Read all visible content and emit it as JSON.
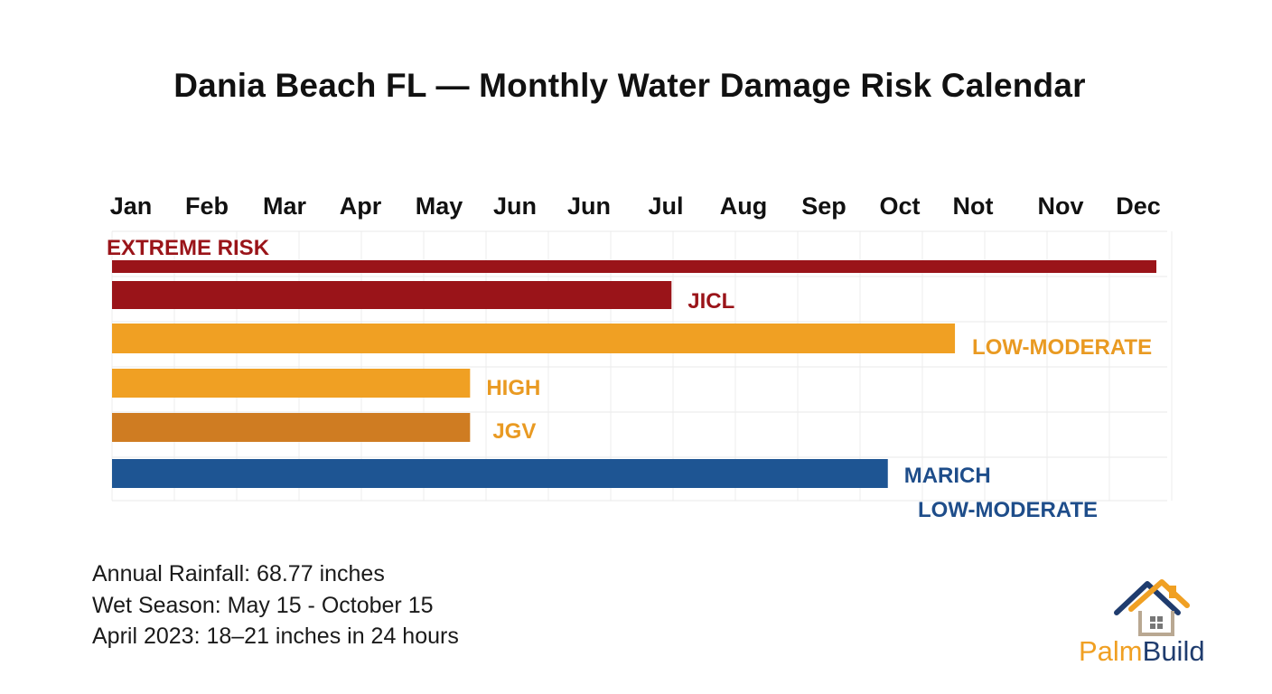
{
  "chart_data": {
    "type": "bar",
    "orientation": "horizontal",
    "title": "Dania Beach FL — Monthly Water Damage Risk Calendar",
    "month_labels": [
      "Jan",
      "Feb",
      "Mar",
      "Apr",
      "May",
      "Jun",
      "Jun",
      "Jul",
      "Aug",
      "Sep",
      "Oct",
      "Not",
      "Nov",
      "Dec"
    ],
    "header_label": "EXTREME RISK",
    "x_range": [
      0,
      14
    ],
    "grid": true,
    "bars": [
      {
        "label": "",
        "end": 14,
        "color": "#9a1419",
        "label_color": "#9a1419"
      },
      {
        "label": "JICL",
        "end": 7.5,
        "color": "#9a1419",
        "label_color": "#9a1419"
      },
      {
        "label": "LOW-MODERATE",
        "end": 11.3,
        "color": "#f0a023",
        "label_color": "#e99a22"
      },
      {
        "label": "HIGH",
        "end": 4.8,
        "color": "#f0a023",
        "label_color": "#e99a22"
      },
      {
        "label": "JGV",
        "end": 4.8,
        "color": "#cf7c22",
        "label_color": "#e99a22"
      },
      {
        "label": "MARICH",
        "label2": "LOW-MODERATE",
        "end": 10.4,
        "color": "#1e5593",
        "label_color": "#1e4d8a"
      }
    ]
  },
  "notes": {
    "line1": "Annual Rainfall: 68.77 inches",
    "line2": "Wet Season: May 15 - October 15",
    "line3": "April 2023: 18–21 inches in 24 hours"
  },
  "logo": {
    "palm": "Palm",
    "build": "Build",
    "icon": "house-icon",
    "colors": {
      "palm": "#f0a023",
      "build": "#1f3c6e"
    }
  }
}
